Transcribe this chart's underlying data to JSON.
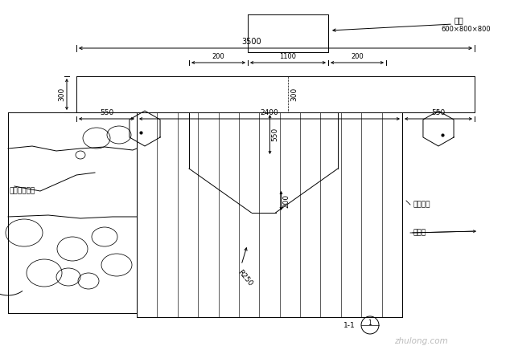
{
  "bg_color": "#ffffff",
  "lc": "#000000",
  "label_block": "级配",
  "label_block_size": "600×800×800",
  "label_left": "各类花洒电产",
  "label_right1": "成品陶羐",
  "label_right2": "水槽盖",
  "watermark": "zhulong.com",
  "dim_3500": "3500",
  "dim_200a": "200",
  "dim_1100": "1100",
  "dim_200b": "200",
  "dim_300h": "300",
  "dim_300v": "300",
  "dim_550a": "550",
  "dim_2400": "2400",
  "dim_550b": "550",
  "dim_550v": "550",
  "dim_200v": "200",
  "dim_r250": "R250",
  "section": "1-1"
}
